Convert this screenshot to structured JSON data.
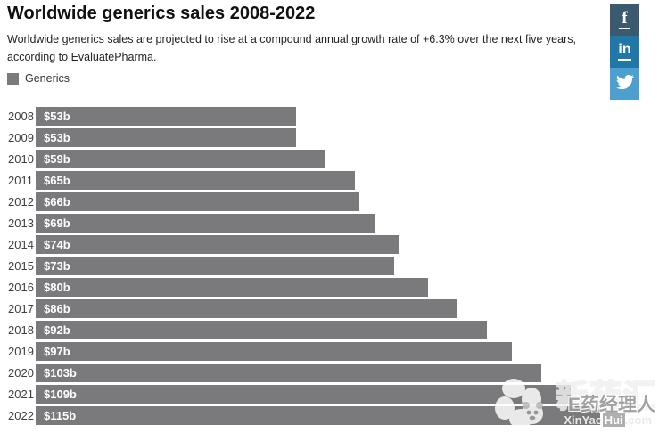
{
  "header": {
    "title": "Worldwide generics sales 2008-2022",
    "subtitle": "Worldwide generics sales are projected to rise at a compound annual growth rate of +6.3% over the next five years, according to EvaluatePharma."
  },
  "legend": {
    "label": "Generics",
    "swatch_color": "#7a7a7d"
  },
  "social": {
    "facebook": {
      "label": "f",
      "color": "#3b5a70"
    },
    "linkedin": {
      "label": "in",
      "color": "#1f78a8"
    },
    "twitter": {
      "color": "#4d9fd0"
    }
  },
  "chart_data": {
    "type": "bar",
    "orientation": "horizontal",
    "title": "Worldwide generics sales 2008-2022",
    "categories": [
      "2008",
      "2009",
      "2010",
      "2011",
      "2012",
      "2013",
      "2014",
      "2015",
      "2016",
      "2017",
      "2018",
      "2019",
      "2020",
      "2021",
      "2022"
    ],
    "series": [
      {
        "name": "Generics",
        "values": [
          53,
          53,
          59,
          65,
          66,
          69,
          74,
          73,
          80,
          86,
          92,
          97,
          103,
          109,
          115
        ],
        "labels": [
          "$53b",
          "$53b",
          "$59b",
          "$65b",
          "$66b",
          "$69b",
          "$74b",
          "$73b",
          "$80b",
          "$86b",
          "$92b",
          "$97b",
          "$103b",
          "$109b",
          "$115b"
        ],
        "color": "#7a7a7d"
      }
    ],
    "value_unit": "USD billions",
    "xlim": [
      0,
      127
    ],
    "grid": false,
    "legend_position": "top-left",
    "data_label_color": "#ffffff",
    "axis_label_color": "#3f3f42"
  },
  "watermark": {
    "brand_large": "新药汇",
    "brand_text": "E药经理人",
    "domain_prefix": "XinYao",
    "domain_highlight": "Hui",
    "domain_suffix": ".com"
  }
}
